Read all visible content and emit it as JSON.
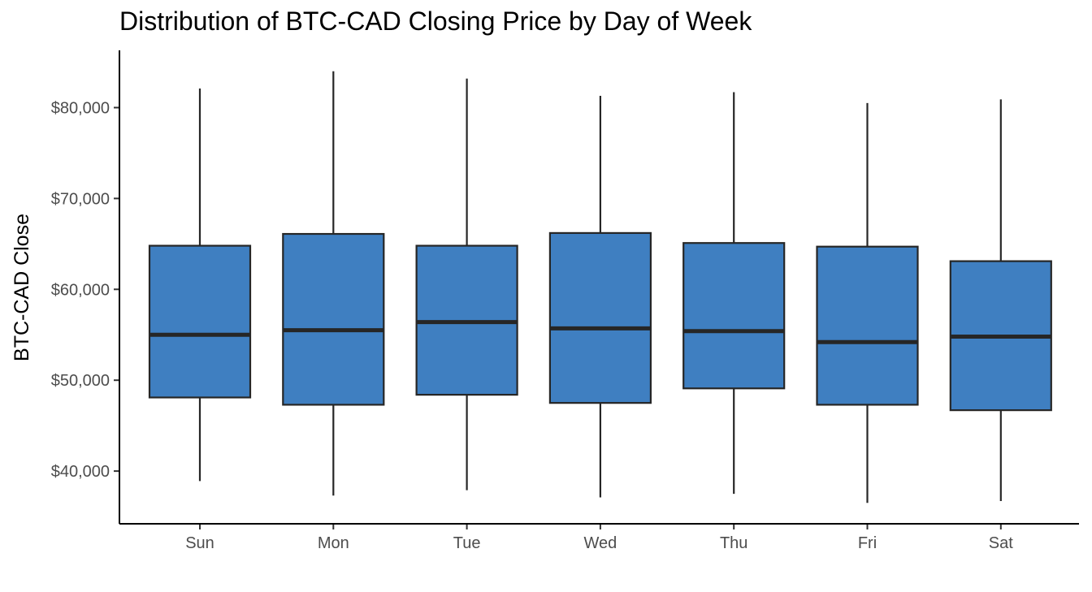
{
  "chart_data": {
    "type": "boxplot",
    "title": "Distribution of BTC-CAD Closing Price by Day of Week",
    "xlabel": "",
    "ylabel": "BTC-CAD Close",
    "categories": [
      "Sun",
      "Mon",
      "Tue",
      "Wed",
      "Thu",
      "Fri",
      "Sat"
    ],
    "y_ticks": [
      40000,
      50000,
      60000,
      70000,
      80000
    ],
    "y_tick_labels": [
      "$40,000",
      "$50,000",
      "$60,000",
      "$70,000",
      "$80,000"
    ],
    "ylim": [
      34200,
      86300
    ],
    "boxes": [
      {
        "category": "Sun",
        "min": 38900,
        "q1": 48100,
        "median": 55000,
        "q3": 64800,
        "max": 82100
      },
      {
        "category": "Mon",
        "min": 37300,
        "q1": 47300,
        "median": 55500,
        "q3": 66100,
        "max": 84000
      },
      {
        "category": "Tue",
        "min": 37900,
        "q1": 48400,
        "median": 56400,
        "q3": 64800,
        "max": 83200
      },
      {
        "category": "Wed",
        "min": 37100,
        "q1": 47500,
        "median": 55700,
        "q3": 66200,
        "max": 81300
      },
      {
        "category": "Thu",
        "min": 37500,
        "q1": 49100,
        "median": 55400,
        "q3": 65100,
        "max": 81700
      },
      {
        "category": "Fri",
        "min": 36500,
        "q1": 47300,
        "median": 54200,
        "q3": 64700,
        "max": 80500
      },
      {
        "category": "Sat",
        "min": 36700,
        "q1": 46700,
        "median": 54800,
        "q3": 63100,
        "max": 80900
      }
    ],
    "box_fill": "#3f7fc1",
    "line_color": "#262626",
    "grid": false,
    "legend": "none"
  }
}
